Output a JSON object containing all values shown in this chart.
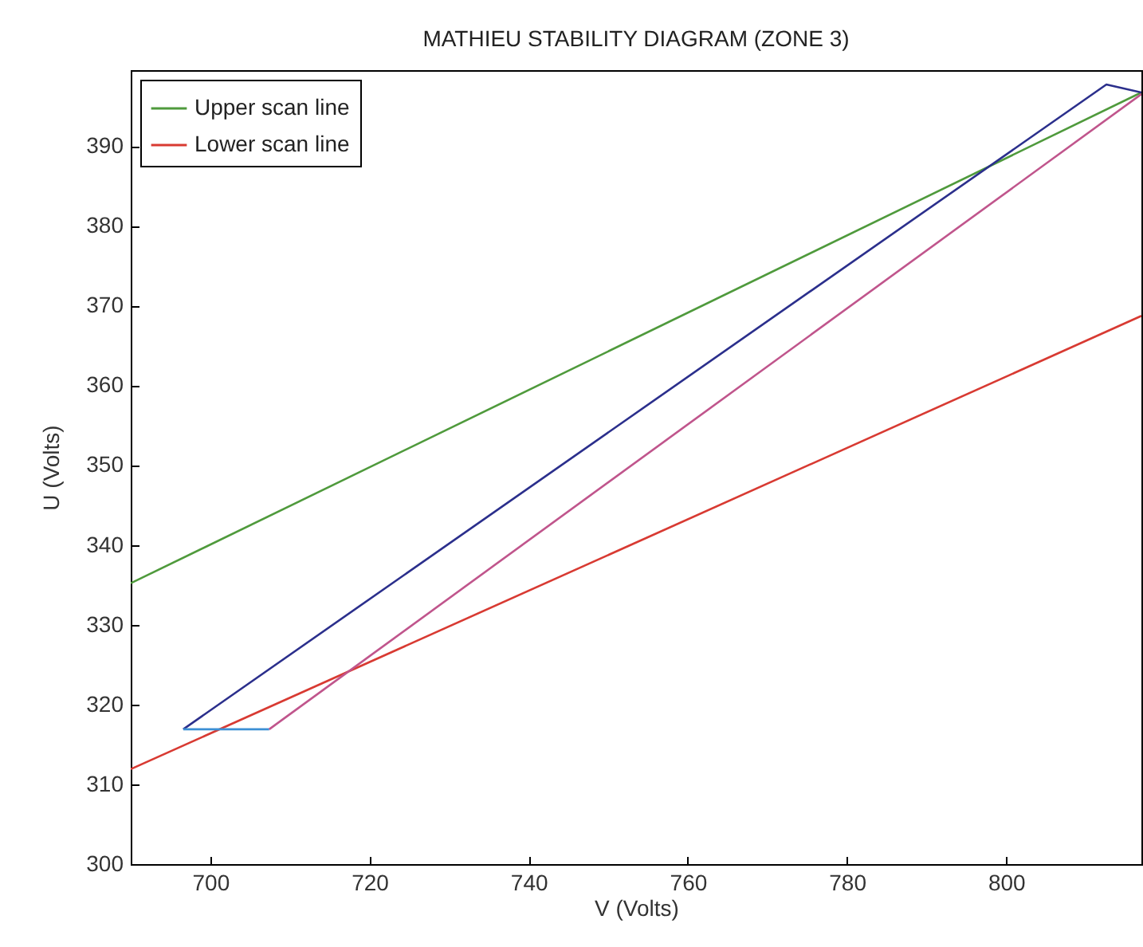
{
  "chart_data": {
    "type": "line",
    "title": "MATHIEU STABILITY DIAGRAM (ZONE 3)",
    "xlabel": "V (Volts)",
    "ylabel": "U (Volts)",
    "xlim": [
      690,
      817
    ],
    "ylim": [
      300,
      399.5
    ],
    "xticks": [
      700,
      720,
      740,
      760,
      780,
      800
    ],
    "yticks": [
      300,
      310,
      320,
      330,
      340,
      350,
      360,
      370,
      380,
      390
    ],
    "grid": false,
    "legend": "top left",
    "series": [
      {
        "name": "Upper scan line",
        "color": "#4f9a3c",
        "x": [
          690,
          817
        ],
        "values": [
          335.2,
          396.7
        ]
      },
      {
        "name": "Lower scan line",
        "color": "#d83a32",
        "x": [
          690,
          817
        ],
        "values": [
          311.9,
          368.7
        ]
      },
      {
        "color": "#2b2f8c",
        "x": [
          696.6,
          812.6,
          817
        ],
        "values": [
          316.9,
          397.7,
          396.7
        ]
      },
      {
        "color": "#3c8fd4",
        "x": [
          696.6,
          707.4
        ],
        "values": [
          316.9,
          316.9
        ]
      },
      {
        "color": "#c0558c",
        "x": [
          707.4,
          817
        ],
        "values": [
          316.9,
          396.5
        ]
      }
    ]
  }
}
